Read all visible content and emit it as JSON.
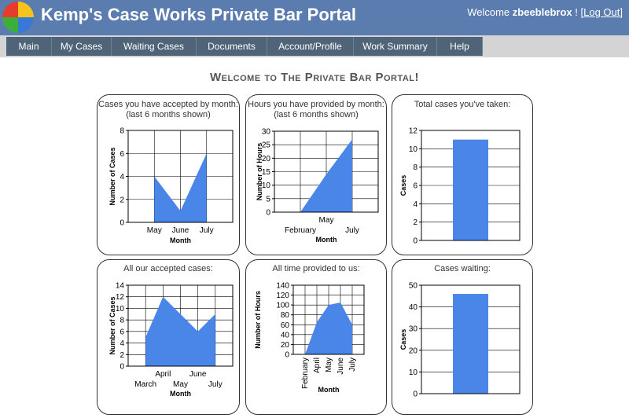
{
  "header": {
    "title": "Kemp's Case Works Private Bar Portal",
    "welcome": "Welcome",
    "user": "zbeeblebrox",
    "separator": "! [",
    "logout": "Log Out",
    "close": "]"
  },
  "nav": [
    "Main",
    "My Cases",
    "Waiting Cases",
    "Documents",
    "Account/Profile",
    "Work Summary",
    "Help"
  ],
  "welcome_title": "Welcome to The Private Bar Portal!",
  "chart_data": [
    {
      "type": "area",
      "title": "Cases you have accepted by month:",
      "subtitle": "(last 6 months shown)",
      "categories": [
        "May",
        "June",
        "July"
      ],
      "values": [
        4,
        1,
        6
      ],
      "color": "#4a86e8",
      "ylim": [
        0,
        8
      ],
      "yticks": [
        0,
        2,
        4,
        6,
        8
      ],
      "ylabel": "Number of Cases",
      "xlabel": "Month",
      "grid": true
    },
    {
      "type": "area",
      "title": "Hours you have provided by month:",
      "subtitle": "(last 6 months shown)",
      "categories": [
        "February",
        "May",
        "July"
      ],
      "values": [
        0,
        14,
        27
      ],
      "color": "#4a86e8",
      "ylim": [
        0,
        30
      ],
      "yticks": [
        0,
        5,
        10,
        15,
        20,
        25,
        30
      ],
      "ylabel": "Number of Hours",
      "xlabel": "Month",
      "grid": true
    },
    {
      "type": "bar",
      "title": "Total cases you've taken:",
      "categories": [
        null
      ],
      "values": [
        11
      ],
      "color": "#4a86e8",
      "ylim": [
        0,
        12
      ],
      "yticks": [
        0,
        2,
        4,
        6,
        8,
        10,
        12
      ],
      "ylabel": "Cases",
      "grid": true
    },
    {
      "type": "area",
      "title": "All our accepted cases:",
      "categories": [
        "March",
        "April",
        "May",
        "June",
        "July"
      ],
      "values": [
        5,
        12,
        9,
        6,
        9
      ],
      "color": "#4a86e8",
      "ylim": [
        0,
        14
      ],
      "yticks": [
        0,
        2,
        4,
        6,
        8,
        10,
        12,
        14
      ],
      "ylabel": "Number of Cases",
      "xlabel": "Month",
      "grid": true
    },
    {
      "type": "area",
      "title": "All time provided to us:",
      "categories": [
        "February",
        "April",
        "May",
        "June",
        "July"
      ],
      "values": [
        0,
        65,
        100,
        105,
        60
      ],
      "color": "#4a86e8",
      "ylim": [
        0,
        140
      ],
      "yticks": [
        0,
        20,
        40,
        60,
        80,
        100,
        120,
        140
      ],
      "ylabel": "Number of Hours",
      "xlabel": "Month",
      "grid": true
    },
    {
      "type": "bar",
      "title": "Cases waiting:",
      "categories": [
        null
      ],
      "values": [
        46
      ],
      "color": "#4a86e8",
      "ylim": [
        0,
        50
      ],
      "yticks": [
        0,
        10,
        20,
        30,
        40,
        50
      ],
      "ylabel": "Cases",
      "grid": true
    }
  ]
}
